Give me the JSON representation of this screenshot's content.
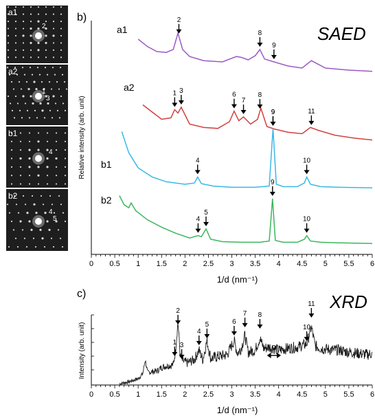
{
  "saed_patterns": [
    {
      "label": "a1",
      "marks": [
        "2"
      ]
    },
    {
      "label": "a2",
      "marks": [
        "1",
        "3"
      ]
    },
    {
      "label": "b1",
      "marks": [
        "4"
      ]
    },
    {
      "label": "b2",
      "marks": [
        "4",
        "5"
      ]
    }
  ],
  "chart_data": [
    {
      "panel": "b)",
      "type": "line",
      "title": "SAED",
      "xlabel": "1/d (nm⁻¹)",
      "ylabel": "Relative intensity (arb. unit)",
      "xlim": [
        0,
        6
      ],
      "x_ticks": [
        "0",
        "0.5",
        "1",
        "1.5",
        "2",
        "2.5",
        "3",
        "3.5",
        "4",
        "4.5",
        "5",
        "5.5",
        "6"
      ],
      "grid": false,
      "series": [
        {
          "name": "a1",
          "color": "#9b59c6",
          "x": [
            1.0,
            1.2,
            1.4,
            1.6,
            1.75,
            1.85,
            1.95,
            2.1,
            2.4,
            2.8,
            3.1,
            3.2,
            3.35,
            3.5,
            3.6,
            3.7,
            3.9,
            4.2,
            4.5,
            4.7,
            4.8,
            5.0,
            5.5,
            6.0
          ],
          "y": [
            0.8,
            0.62,
            0.5,
            0.48,
            0.55,
            0.95,
            0.55,
            0.38,
            0.28,
            0.25,
            0.38,
            0.36,
            0.3,
            0.4,
            0.55,
            0.32,
            0.25,
            0.15,
            0.1,
            0.28,
            0.22,
            0.1,
            0.05,
            0.02
          ],
          "peaks": [
            {
              "label": "2",
              "x": 1.87
            },
            {
              "label": "8",
              "x": 3.6
            },
            {
              "label": "9",
              "x": 3.9
            }
          ]
        },
        {
          "name": "a2",
          "color": "#d0413e",
          "x": [
            1.1,
            1.3,
            1.5,
            1.7,
            1.78,
            1.85,
            1.92,
            2.1,
            2.4,
            2.7,
            2.95,
            3.05,
            3.15,
            3.25,
            3.4,
            3.55,
            3.62,
            3.75,
            3.9,
            4.2,
            4.5,
            4.68,
            4.85,
            5.2,
            5.6,
            6.0
          ],
          "y": [
            0.75,
            0.6,
            0.45,
            0.48,
            0.65,
            0.58,
            0.7,
            0.35,
            0.28,
            0.26,
            0.4,
            0.62,
            0.42,
            0.5,
            0.35,
            0.45,
            0.68,
            0.3,
            0.25,
            0.18,
            0.15,
            0.28,
            0.22,
            0.12,
            0.06,
            0.02
          ],
          "peaks": [
            {
              "label": "1",
              "x": 1.78
            },
            {
              "label": "3",
              "x": 1.92
            },
            {
              "label": "6",
              "x": 3.05
            },
            {
              "label": "7",
              "x": 3.25
            },
            {
              "label": "8",
              "x": 3.6
            },
            {
              "label": "9",
              "x": 3.88
            },
            {
              "label": "11",
              "x": 4.7
            }
          ]
        },
        {
          "name": "b1",
          "color": "#3ab7e6",
          "x": [
            0.65,
            0.8,
            1.0,
            1.3,
            1.6,
            2.0,
            2.2,
            2.27,
            2.35,
            2.6,
            3.0,
            3.5,
            3.8,
            3.88,
            3.95,
            4.1,
            4.4,
            4.55,
            4.6,
            4.68,
            4.9,
            5.3,
            6.0
          ],
          "y": [
            0.95,
            0.6,
            0.35,
            0.2,
            0.12,
            0.08,
            0.1,
            0.2,
            0.09,
            0.05,
            0.03,
            0.03,
            0.05,
            1.0,
            0.08,
            0.04,
            0.04,
            0.1,
            0.2,
            0.08,
            0.04,
            0.03,
            0.02
          ],
          "peaks": [
            {
              "label": "4",
              "x": 2.27
            },
            {
              "label": "9",
              "x": 3.88
            },
            {
              "label": "10",
              "x": 4.6
            }
          ]
        },
        {
          "name": "b2",
          "color": "#3bb55c",
          "x": [
            0.6,
            0.7,
            0.8,
            0.85,
            0.95,
            1.2,
            1.5,
            1.8,
            2.1,
            2.28,
            2.35,
            2.45,
            2.55,
            2.8,
            3.2,
            3.6,
            3.8,
            3.87,
            3.93,
            4.1,
            4.4,
            4.55,
            4.6,
            4.68,
            4.9,
            5.3,
            6.0
          ],
          "y": [
            0.8,
            0.65,
            0.6,
            0.68,
            0.55,
            0.4,
            0.28,
            0.18,
            0.1,
            0.14,
            0.12,
            0.25,
            0.08,
            0.04,
            0.03,
            0.03,
            0.05,
            0.75,
            0.06,
            0.03,
            0.03,
            0.08,
            0.14,
            0.05,
            0.03,
            0.02,
            0.01
          ],
          "peaks": [
            {
              "label": "4",
              "x": 2.28
            },
            {
              "label": "5",
              "x": 2.45
            },
            {
              "label": "9",
              "x": 3.87
            },
            {
              "label": "10",
              "x": 4.6
            }
          ]
        }
      ]
    },
    {
      "panel": "c)",
      "type": "line",
      "title": "XRD",
      "xlabel": "1/d (nm⁻¹)",
      "ylabel": "Intensity (arb. unit)",
      "xlim": [
        0,
        6
      ],
      "x_ticks": [
        "0",
        "0.5",
        "1",
        "1.5",
        "2",
        "2.5",
        "3",
        "3.5",
        "4",
        "4.5",
        "5",
        "5.5",
        "6"
      ],
      "grid": false,
      "series": [
        {
          "name": "",
          "color": "#1a1a1a",
          "x": [
            0.6,
            0.8,
            1.0,
            1.1,
            1.15,
            1.2,
            1.4,
            1.5,
            1.6,
            1.75,
            1.8,
            1.85,
            1.9,
            1.95,
            2.05,
            2.2,
            2.3,
            2.38,
            2.47,
            2.55,
            2.7,
            2.9,
            3.05,
            3.12,
            3.2,
            3.28,
            3.35,
            3.5,
            3.6,
            3.68,
            3.8,
            3.9,
            4.0,
            4.2,
            4.4,
            4.6,
            4.7,
            4.78,
            4.9,
            5.1,
            5.3,
            5.5,
            5.7,
            5.9,
            6.0
          ],
          "y": [
            0.02,
            0.05,
            0.1,
            0.18,
            0.4,
            0.2,
            0.22,
            0.28,
            0.3,
            0.32,
            0.55,
            1.0,
            0.45,
            0.38,
            0.35,
            0.4,
            0.55,
            0.4,
            0.7,
            0.42,
            0.45,
            0.48,
            0.7,
            0.5,
            0.58,
            0.78,
            0.52,
            0.55,
            0.74,
            0.58,
            0.6,
            0.58,
            0.55,
            0.58,
            0.6,
            0.65,
            0.92,
            0.62,
            0.58,
            0.56,
            0.55,
            0.52,
            0.5,
            0.48,
            0.5
          ],
          "peaks": [
            {
              "label": "1",
              "x": 1.78
            },
            {
              "label": "2",
              "x": 1.85
            },
            {
              "label": "3",
              "x": 1.93
            },
            {
              "label": "4",
              "x": 2.3
            },
            {
              "label": "5",
              "x": 2.47
            },
            {
              "label": "6",
              "x": 3.05
            },
            {
              "label": "7",
              "x": 3.28
            },
            {
              "label": "8",
              "x": 3.6
            },
            {
              "label": "10",
              "x": 4.6
            },
            {
              "label": "11",
              "x": 4.7
            }
          ],
          "ranges": [
            {
              "label": "9",
              "x_from": 3.75,
              "x_to": 4.05
            }
          ]
        }
      ]
    }
  ]
}
